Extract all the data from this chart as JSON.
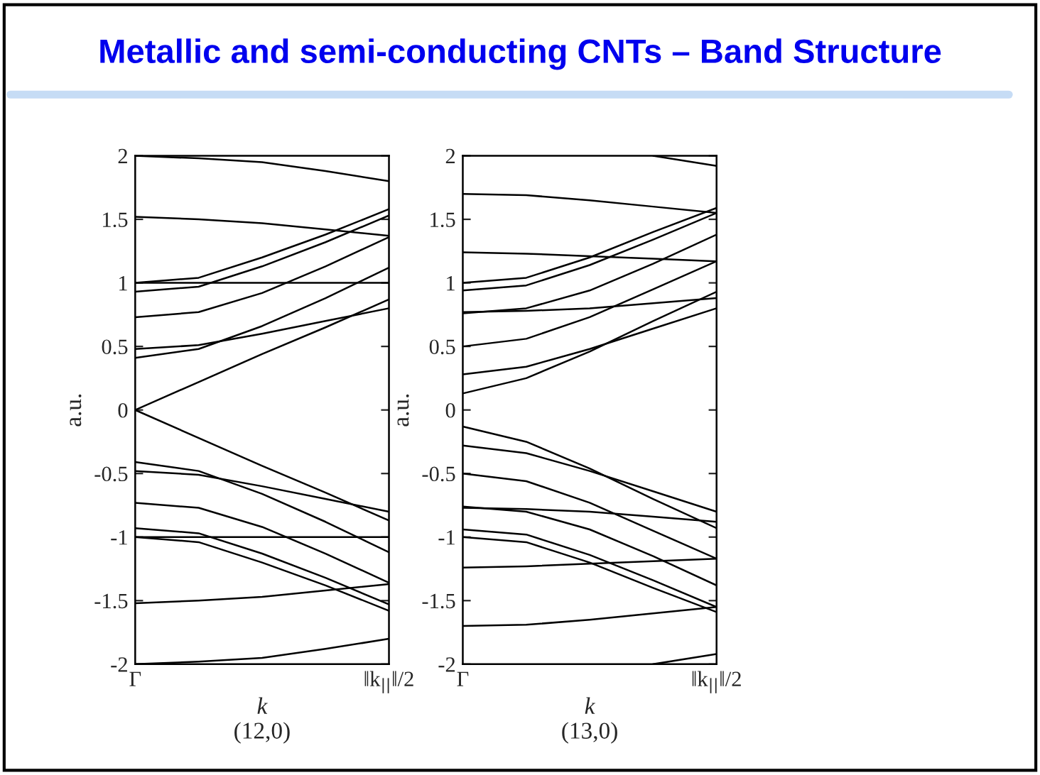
{
  "chart_data": [
    {
      "type": "line",
      "title": "Metallic and semi-conducting CNTs – Band Structure",
      "xlabel": "k",
      "ylabel": "a.u.",
      "annotations": [
        "(12,0)"
      ],
      "categories": [
        "Γ",
        null,
        null,
        null,
        "‖k$_{||}$‖/2"
      ],
      "ylim": [
        -2,
        2
      ],
      "yticks": [
        -2,
        -1.5,
        -1,
        -0.5,
        0,
        0.5,
        1,
        1.5,
        2
      ],
      "series": [
        {
          "color": "#000000",
          "values": [
            2.0,
            1.98,
            1.95,
            1.88,
            1.8
          ]
        },
        {
          "color": "#000000",
          "values": [
            1.52,
            1.5,
            1.47,
            1.42,
            1.37
          ]
        },
        {
          "color": "#000000",
          "values": [
            1.0,
            1.04,
            1.2,
            1.38,
            1.58
          ]
        },
        {
          "color": "#000000",
          "values": [
            0.93,
            0.97,
            1.13,
            1.32,
            1.53
          ]
        },
        {
          "color": "#000000",
          "values": [
            1.0,
            1.0,
            1.0,
            1.0,
            1.0
          ]
        },
        {
          "color": "#000000",
          "values": [
            0.73,
            0.77,
            0.92,
            1.13,
            1.36
          ]
        },
        {
          "color": "#000000",
          "values": [
            0.48,
            0.51,
            0.6,
            0.7,
            0.8
          ]
        },
        {
          "color": "#000000",
          "values": [
            0.41,
            0.48,
            0.66,
            0.88,
            1.12
          ]
        },
        {
          "color": "#000000",
          "values": [
            0,
            0.22,
            0.44,
            0.65,
            0.87
          ]
        },
        {
          "color": "#000000",
          "values": [
            0,
            -0.22,
            -0.44,
            -0.65,
            -0.87
          ]
        },
        {
          "color": "#000000",
          "values": [
            -0.41,
            -0.48,
            -0.66,
            -0.88,
            -1.12
          ]
        },
        {
          "color": "#000000",
          "values": [
            -0.48,
            -0.51,
            -0.6,
            -0.7,
            -0.8
          ]
        },
        {
          "color": "#000000",
          "values": [
            -0.73,
            -0.77,
            -0.92,
            -1.13,
            -1.36
          ]
        },
        {
          "color": "#000000",
          "values": [
            -1.0,
            -1.0,
            -1.0,
            -1.0,
            -1.0
          ]
        },
        {
          "color": "#000000",
          "values": [
            -0.93,
            -0.97,
            -1.13,
            -1.32,
            -1.53
          ]
        },
        {
          "color": "#000000",
          "values": [
            -1.0,
            -1.04,
            -1.2,
            -1.38,
            -1.58
          ]
        },
        {
          "color": "#000000",
          "values": [
            -1.52,
            -1.5,
            -1.47,
            -1.42,
            -1.37
          ]
        },
        {
          "color": "#000000",
          "values": [
            -2.0,
            -1.98,
            -1.95,
            -1.88,
            -1.8
          ]
        }
      ]
    },
    {
      "type": "line",
      "xlabel": "k",
      "ylabel": "a.u.",
      "annotations": [
        "(13,0)"
      ],
      "categories": [
        "Γ",
        null,
        null,
        null,
        "‖k$_{||}$‖/2"
      ],
      "ylim": [
        -2,
        2
      ],
      "yticks": [
        -2,
        -1.5,
        -1,
        -0.5,
        0,
        0.5,
        1,
        1.5,
        2
      ],
      "series": [
        {
          "color": "#000000",
          "values": [
            null,
            null,
            null,
            2.0,
            1.92
          ]
        },
        {
          "color": "#000000",
          "values": [
            1.7,
            1.69,
            1.65,
            1.6,
            1.55
          ]
        },
        {
          "color": "#000000",
          "values": [
            1.24,
            1.23,
            1.21,
            1.19,
            1.17
          ]
        },
        {
          "color": "#000000",
          "values": [
            1.0,
            1.04,
            1.2,
            1.4,
            1.59
          ]
        },
        {
          "color": "#000000",
          "values": [
            0.94,
            0.98,
            1.14,
            1.34,
            1.55
          ]
        },
        {
          "color": "#000000",
          "values": [
            0.76,
            0.8,
            0.94,
            1.15,
            1.38
          ]
        },
        {
          "color": "#000000",
          "values": [
            0.77,
            0.78,
            0.8,
            0.84,
            0.88
          ]
        },
        {
          "color": "#000000",
          "values": [
            0.5,
            0.56,
            0.73,
            0.95,
            1.17
          ]
        },
        {
          "color": "#000000",
          "values": [
            0.28,
            0.34,
            0.48,
            0.64,
            0.8
          ]
        },
        {
          "color": "#000000",
          "values": [
            0.13,
            0.25,
            0.46,
            0.7,
            0.93
          ]
        },
        {
          "color": "#000000",
          "values": [
            -0.13,
            -0.25,
            -0.46,
            -0.7,
            -0.93
          ]
        },
        {
          "color": "#000000",
          "values": [
            -0.28,
            -0.34,
            -0.48,
            -0.64,
            -0.8
          ]
        },
        {
          "color": "#000000",
          "values": [
            -0.5,
            -0.56,
            -0.73,
            -0.95,
            -1.17
          ]
        },
        {
          "color": "#000000",
          "values": [
            -0.77,
            -0.78,
            -0.8,
            -0.84,
            -0.88
          ]
        },
        {
          "color": "#000000",
          "values": [
            -0.76,
            -0.8,
            -0.94,
            -1.15,
            -1.38
          ]
        },
        {
          "color": "#000000",
          "values": [
            -0.94,
            -0.98,
            -1.14,
            -1.34,
            -1.55
          ]
        },
        {
          "color": "#000000",
          "values": [
            -1.0,
            -1.04,
            -1.2,
            -1.4,
            -1.59
          ]
        },
        {
          "color": "#000000",
          "values": [
            -1.24,
            -1.23,
            -1.21,
            -1.19,
            -1.17
          ]
        },
        {
          "color": "#000000",
          "values": [
            -1.7,
            -1.69,
            -1.65,
            -1.6,
            -1.55
          ]
        },
        {
          "color": "#000000",
          "values": [
            null,
            null,
            null,
            -2.0,
            -1.92
          ]
        }
      ]
    }
  ]
}
